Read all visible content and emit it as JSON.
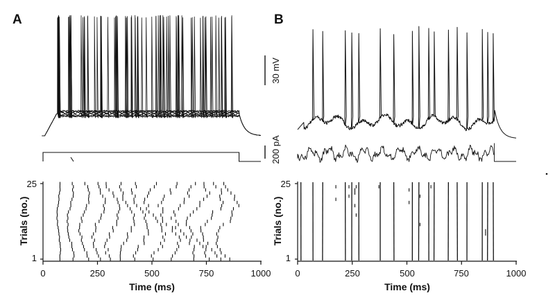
{
  "figure": {
    "panels": [
      {
        "id": "A",
        "label": "A",
        "stimulus_type": "current step",
        "raster_pattern": "jittered"
      },
      {
        "id": "B",
        "label": "B",
        "stimulus_type": "fluctuating current",
        "raster_pattern": "aligned"
      }
    ],
    "scale_bars": {
      "voltage": "30 mV",
      "current": "200 pA"
    },
    "colors": {
      "trace": "#111111",
      "background": "#ffffff"
    }
  },
  "chart_data": [
    {
      "type": "scatter",
      "panel": "A",
      "xlabel": "Time (ms)",
      "ylabel": "Trials (no.)",
      "xlim": [
        0,
        1000
      ],
      "ylim": [
        1,
        25
      ],
      "xticks": [
        "0",
        "250",
        "500",
        "750",
        "1000"
      ],
      "yticks": [
        "1",
        "25"
      ],
      "trials": 25,
      "stimulus_ms": [
        0,
        900
      ],
      "series": [
        {
          "first_spike_ms": 72,
          "jitter_ms": 7
        },
        {
          "first_spike_ms": 125,
          "jitter_ms": 14
        },
        {
          "first_spike_ms": 190,
          "jitter_ms": 20
        },
        {
          "first_spike_ms": 255,
          "jitter_ms": 26
        },
        {
          "first_spike_ms": 320,
          "jitter_ms": 30
        },
        {
          "first_spike_ms": 385,
          "jitter_ms": 34
        },
        {
          "first_spike_ms": 450,
          "jitter_ms": 37
        },
        {
          "first_spike_ms": 515,
          "jitter_ms": 40
        },
        {
          "first_spike_ms": 580,
          "jitter_ms": 42
        },
        {
          "first_spike_ms": 645,
          "jitter_ms": 44
        },
        {
          "first_spike_ms": 710,
          "jitter_ms": 45
        },
        {
          "first_spike_ms": 775,
          "jitter_ms": 46
        },
        {
          "first_spike_ms": 840,
          "jitter_ms": 46
        }
      ]
    },
    {
      "type": "scatter",
      "panel": "B",
      "xlabel": "Time (ms)",
      "ylabel": "Trials (no.)",
      "xlim": [
        0,
        1000
      ],
      "ylim": [
        1,
        25
      ],
      "xticks": [
        "0",
        "250",
        "500",
        "750",
        "1000"
      ],
      "yticks": [
        "1",
        "25"
      ],
      "trials": 25,
      "stimulus_ms": [
        0,
        900
      ],
      "spike_times_ms": [
        15,
        70,
        115,
        218,
        248,
        280,
        378,
        440,
        525,
        555,
        600,
        625,
        690,
        730,
        775,
        845,
        870,
        895
      ],
      "sporadic_spikes": [
        {
          "t": 175,
          "trials": [
            20,
            24
          ]
        },
        {
          "t": 235,
          "trials": [
            21,
            24
          ]
        },
        {
          "t": 262,
          "trials": [
            18,
            22,
            23
          ]
        },
        {
          "t": 268,
          "trials": [
            15,
            24
          ]
        },
        {
          "t": 372,
          "trials": [
            24
          ]
        },
        {
          "t": 510,
          "trials": [
            19,
            23
          ]
        },
        {
          "t": 560,
          "trials": [
            12,
            21
          ]
        },
        {
          "t": 610,
          "trials": [
            24
          ]
        },
        {
          "t": 860,
          "trials": [
            9,
            10
          ]
        }
      ]
    }
  ]
}
